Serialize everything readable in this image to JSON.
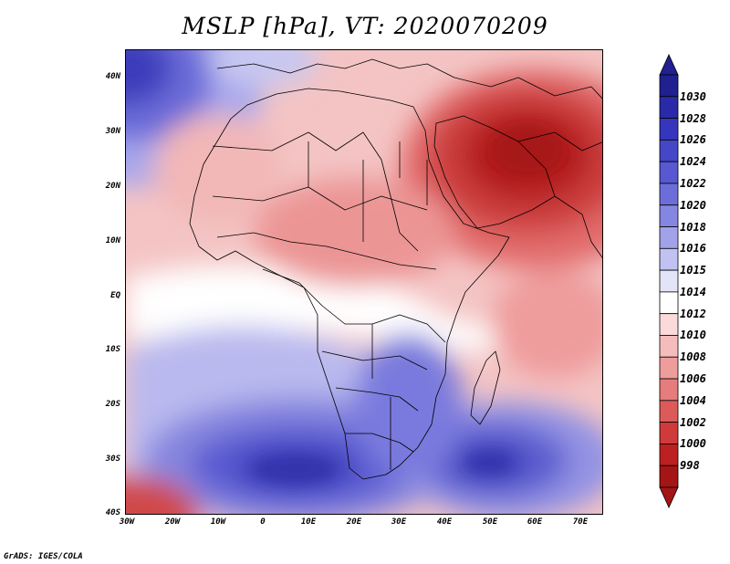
{
  "title": "MSLP [hPa], VT: 2020070209",
  "credit": "GrADS: IGES/COLA",
  "map": {
    "variable": "Mean sea level pressure",
    "units": "hPa",
    "lon_range": [
      -30,
      75
    ],
    "lat_range": [
      -40,
      45
    ],
    "x_ticks": [
      "30W",
      "20W",
      "10W",
      "0",
      "10E",
      "20E",
      "30E",
      "40E",
      "50E",
      "60E",
      "70E"
    ],
    "y_ticks": [
      "40N",
      "30N",
      "20N",
      "10N",
      "EQ",
      "10S",
      "20S",
      "30S",
      "40S"
    ]
  },
  "colorbar": {
    "levels": [
      "1030",
      "1028",
      "1026",
      "1024",
      "1022",
      "1020",
      "1018",
      "1016",
      "1015",
      "1014",
      "1012",
      "1010",
      "1008",
      "1006",
      "1004",
      "1002",
      "1000",
      "998"
    ],
    "colors": [
      "#202090",
      "#2a2aa8",
      "#3535bd",
      "#4646c9",
      "#5858d2",
      "#6d6dda",
      "#8585e2",
      "#a2a2ea",
      "#c2c2f2",
      "#e4e4f8",
      "#ffffff",
      "#fadada",
      "#f5bcbc",
      "#ee9c9c",
      "#e67c7c",
      "#dd5a5a",
      "#d03a3a",
      "#bc2020",
      "#a41515"
    ]
  },
  "colors": {
    "low": "#a41515",
    "high": "#202090",
    "neutral": "#ffffff"
  }
}
